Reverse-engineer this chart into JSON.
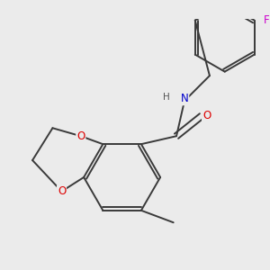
{
  "background_color": "#ebebeb",
  "bond_color": "#3a3a3a",
  "bond_width": 1.4,
  "atom_colors": {
    "O": "#dd0000",
    "N": "#0000cc",
    "F": "#cc00cc",
    "H": "#555555"
  },
  "font_size_atom": 8.5,
  "figsize": [
    3.0,
    3.0
  ],
  "dpi": 100
}
